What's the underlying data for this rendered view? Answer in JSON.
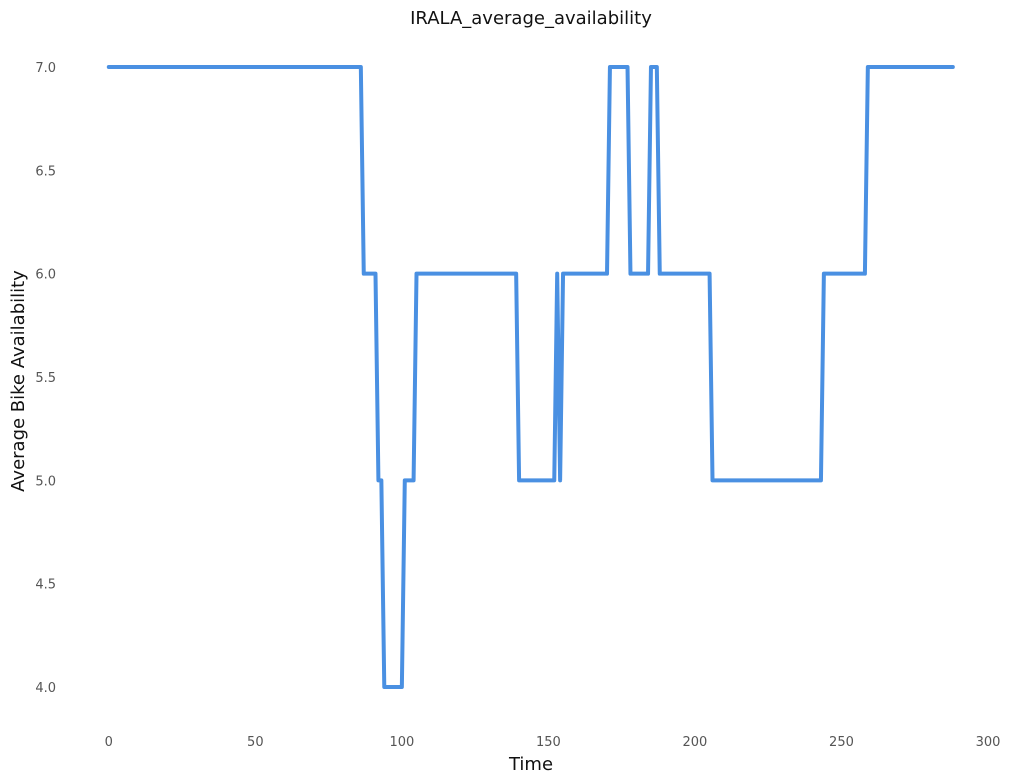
{
  "chart_data": {
    "type": "line",
    "title": "IRALA_average_availability",
    "xlabel": "Time",
    "ylabel": "Average Bike Availability",
    "xlim": [
      -3,
      300
    ],
    "ylim": [
      3.85,
      7.15
    ],
    "x_ticks": [
      0,
      50,
      100,
      150,
      200,
      250,
      300
    ],
    "y_ticks": [
      4.0,
      4.5,
      5.0,
      5.5,
      6.0,
      6.5,
      7.0
    ],
    "x_tick_labels": [
      "0",
      "50",
      "100",
      "150",
      "200",
      "250",
      "300"
    ],
    "y_tick_labels": [
      "4.0",
      "4.5",
      "5.0",
      "5.5",
      "6.0",
      "6.5",
      "7.0"
    ],
    "grid": false,
    "legend": false,
    "series_color": "#4a90e2",
    "series": [
      {
        "points": [
          [
            0,
            7
          ],
          [
            86,
            7
          ],
          [
            87,
            6
          ],
          [
            91,
            6
          ],
          [
            92,
            5
          ],
          [
            93,
            5
          ],
          [
            94,
            4
          ],
          [
            100,
            4
          ],
          [
            101,
            5
          ],
          [
            104,
            5
          ],
          [
            105,
            6
          ],
          [
            139,
            6
          ],
          [
            140,
            5
          ],
          [
            152,
            5
          ],
          [
            153,
            6
          ],
          [
            154,
            5
          ],
          [
            155,
            6
          ],
          [
            170,
            6
          ],
          [
            171,
            7
          ],
          [
            177,
            7
          ],
          [
            178,
            6
          ],
          [
            184,
            6
          ],
          [
            185,
            7
          ],
          [
            187,
            7
          ],
          [
            188,
            6
          ],
          [
            205,
            6
          ],
          [
            206,
            5
          ],
          [
            243,
            5
          ],
          [
            244,
            6
          ],
          [
            258,
            6
          ],
          [
            259,
            7
          ],
          [
            288,
            7
          ]
        ]
      }
    ]
  }
}
